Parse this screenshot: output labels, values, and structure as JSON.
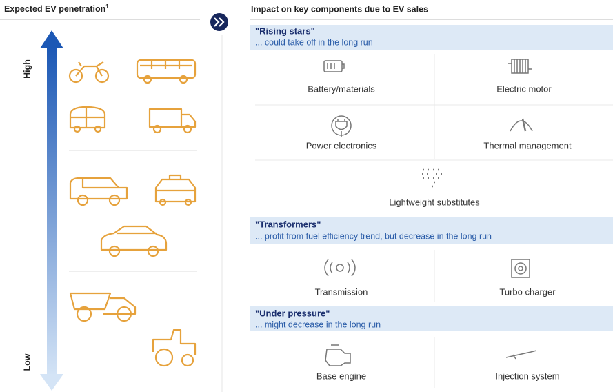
{
  "left_panel": {
    "title": "Expected EV penetration",
    "title_footnote": "1",
    "axis_high": "High",
    "axis_low": "Low"
  },
  "right_panel": {
    "title": "Impact on key components due to EV sales",
    "sections": [
      {
        "title": "\"Rising stars\"",
        "subtitle": "... could take off in the long run",
        "items": [
          "Battery/materials",
          "Electric motor",
          "Power electronics",
          "Thermal management",
          "Lightweight substitutes"
        ]
      },
      {
        "title": "\"Transformers\"",
        "subtitle": "... profit from fuel efficiency trend, but decrease in the long run",
        "items": [
          "Transmission",
          "Turbo charger"
        ]
      },
      {
        "title": "\"Under pressure\"",
        "subtitle": "... might decrease in the long run",
        "items": [
          "Base engine",
          "Injection system"
        ]
      }
    ]
  }
}
